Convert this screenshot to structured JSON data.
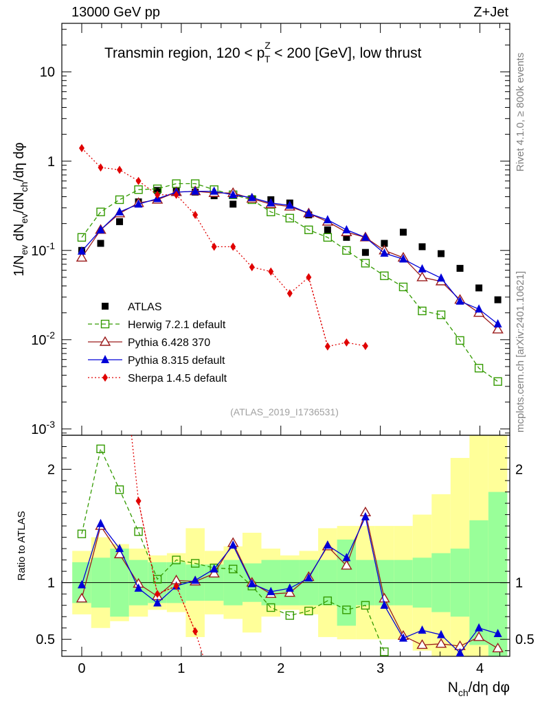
{
  "header": {
    "left": "13000 GeV pp",
    "right": "Z+Jet",
    "title_main": "Transmin region, 120 < p",
    "title_sup": "Z",
    "title_sub": "T",
    "title_rest": " < 200 [GeV], low thrust",
    "analysis_id": "(ATLAS_2019_I1736531)"
  },
  "side_text": {
    "top": "Rivet 4.1.0, ≥ 800k events",
    "bottom": "mcplots.cern.ch [arXiv:2401.10621]"
  },
  "colors": {
    "ATLAS": "#000000",
    "Herwig": "#339a00",
    "Pythia6": "#9a1a1a",
    "Pythia8": "#0000d8",
    "Sherpa": "#e00000",
    "band_inner": "#99ff99",
    "band_outer": "#ffff99"
  },
  "chart_data": [
    {
      "type": "scatter",
      "panel": "main",
      "ylabel": "1/N_ev dN_ev/dN_ch/dη dφ",
      "yscale": "log",
      "ylim": [
        0.00085,
        35
      ],
      "xlim": [
        -0.2,
        4.3
      ],
      "y_ticks": [
        "10^-3",
        "10^-2",
        "10^-1",
        "1",
        "10"
      ],
      "x": [
        0,
        0.19,
        0.38,
        0.57,
        0.76,
        0.95,
        1.14,
        1.33,
        1.52,
        1.71,
        1.9,
        2.09,
        2.28,
        2.47,
        2.66,
        2.85,
        3.04,
        3.23,
        3.42,
        3.61,
        3.8,
        3.99,
        4.18
      ],
      "series": [
        {
          "name": "ATLAS",
          "values": [
            0.1,
            0.12,
            0.21,
            0.35,
            0.47,
            0.46,
            0.45,
            0.41,
            0.33,
            0.38,
            0.37,
            0.34,
            0.25,
            0.17,
            0.14,
            0.095,
            0.12,
            0.16,
            0.11,
            0.092,
            0.063,
            0.038,
            0.028
          ]
        },
        {
          "name": "Herwig 7.2.1 default",
          "values": [
            0.14,
            0.27,
            0.37,
            0.48,
            0.49,
            0.56,
            0.56,
            0.48,
            0.42,
            0.37,
            0.27,
            0.23,
            0.17,
            0.14,
            0.1,
            0.072,
            0.052,
            0.039,
            0.021,
            0.019,
            0.0098,
            0.0048,
            0.0034
          ]
        },
        {
          "name": "Pythia 6.428 370",
          "values": [
            0.083,
            0.17,
            0.26,
            0.34,
            0.37,
            0.45,
            0.46,
            0.44,
            0.44,
            0.38,
            0.33,
            0.31,
            0.26,
            0.21,
            0.16,
            0.14,
            0.1,
            0.083,
            0.05,
            0.045,
            0.028,
            0.02,
            0.013
          ]
        },
        {
          "name": "Pythia 8.315 default",
          "values": [
            0.098,
            0.17,
            0.27,
            0.33,
            0.38,
            0.45,
            0.46,
            0.46,
            0.42,
            0.39,
            0.34,
            0.32,
            0.26,
            0.22,
            0.17,
            0.14,
            0.093,
            0.08,
            0.062,
            0.049,
            0.027,
            0.022,
            0.015
          ]
        },
        {
          "name": "Sherpa 1.4.5 default",
          "values": [
            1.4,
            0.85,
            0.8,
            0.6,
            0.42,
            0.42,
            0.25,
            0.11,
            0.11,
            0.065,
            0.058,
            0.033,
            0.05,
            0.0084,
            0.0093,
            0.0085,
            null,
            null,
            null,
            null,
            null,
            null,
            null
          ]
        }
      ],
      "legend": [
        "ATLAS",
        "Herwig 7.2.1 default",
        "Pythia 6.428 370",
        "Pythia 8.315 default",
        "Sherpa 1.4.5 default"
      ]
    },
    {
      "type": "scatter",
      "panel": "ratio",
      "ylabel": "Ratio to ATLAS",
      "xlabel": "N_ch/dη dφ",
      "ylim": [
        0.35,
        2.3
      ],
      "xlim": [
        -0.2,
        4.3
      ],
      "y_ticks": [
        "0.5",
        "1",
        "2"
      ],
      "x_ticks": [
        "0",
        "1",
        "2",
        "3",
        "4"
      ],
      "x": [
        0,
        0.19,
        0.38,
        0.57,
        0.76,
        0.95,
        1.14,
        1.33,
        1.52,
        1.71,
        1.9,
        2.09,
        2.28,
        2.47,
        2.66,
        2.85,
        3.04,
        3.23,
        3.42,
        3.61,
        3.8,
        3.99,
        4.18
      ],
      "band_inner_half_width": [
        0.18,
        0.22,
        0.3,
        0.2,
        0.18,
        0.18,
        0.16,
        0.16,
        0.2,
        0.17,
        0.2,
        0.2,
        0.2,
        0.2,
        0.38,
        0.2,
        0.2,
        0.2,
        0.22,
        0.26,
        0.3,
        0.55,
        0.8
      ],
      "band_outer_half_width": [
        0.28,
        0.4,
        0.34,
        0.3,
        0.24,
        0.26,
        0.48,
        0.28,
        0.32,
        0.44,
        0.3,
        0.24,
        0.28,
        0.48,
        0.5,
        0.5,
        0.5,
        0.5,
        0.6,
        0.78,
        1.1,
        1.5,
        2
      ],
      "series": [
        {
          "name": "Herwig 7.2.1 default",
          "values": [
            1.43,
            2.18,
            1.82,
            1.45,
            1.03,
            1.2,
            1.17,
            1.13,
            1.12,
            0.97,
            0.78,
            0.71,
            0.75,
            0.84,
            0.76,
            0.8,
            0.39,
            null,
            null,
            null,
            null,
            null,
            null
          ]
        },
        {
          "name": "Pythia 6.428 370",
          "values": [
            0.86,
            1.5,
            1.25,
            0.99,
            0.88,
            1.02,
            1.01,
            1.08,
            1.35,
            1.0,
            0.9,
            0.91,
            1.05,
            1.32,
            1.15,
            1.62,
            0.86,
            0.53,
            0.45,
            0.46,
            0.44,
            0.52,
            0.42
          ]
        },
        {
          "name": "Pythia 8.315 default",
          "values": [
            0.98,
            1.52,
            1.3,
            0.95,
            0.82,
            0.97,
            1.02,
            1.12,
            1.33,
            0.99,
            0.92,
            0.95,
            1.04,
            1.33,
            1.22,
            1.58,
            0.8,
            0.51,
            0.58,
            0.54,
            0.38,
            0.6,
            0.55
          ]
        },
        {
          "name": "Sherpa 1.4.5 default",
          "values": [
            null,
            null,
            null,
            1.72,
            0.9,
            0.97,
            0.57,
            null,
            null,
            null,
            null,
            null,
            null,
            null,
            null,
            null,
            null,
            null,
            null,
            null,
            null,
            null,
            null
          ]
        }
      ]
    }
  ]
}
